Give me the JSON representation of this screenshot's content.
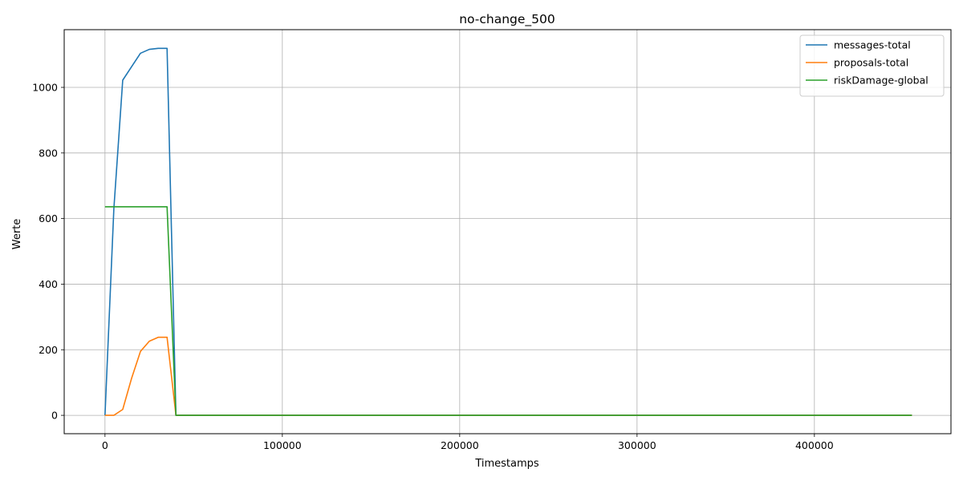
{
  "chart_data": {
    "type": "line",
    "title": "no-change_500",
    "xlabel": "Timestamps",
    "ylabel": "Werte",
    "xlim": [
      -23000,
      477000
    ],
    "ylim": [
      -56,
      1176
    ],
    "x_ticks": [
      0,
      100000,
      200000,
      300000,
      400000
    ],
    "y_ticks": [
      0,
      200,
      400,
      600,
      800,
      1000
    ],
    "grid": true,
    "legend_position": "top-right",
    "series": [
      {
        "name": "messages-total",
        "color": "#1f77b4",
        "x": [
          0,
          5000,
          10000,
          15000,
          20000,
          25000,
          30000,
          35000,
          40000,
          455000
        ],
        "y": [
          0,
          630,
          1022,
          1063,
          1104,
          1116,
          1119,
          1119,
          0,
          0
        ]
      },
      {
        "name": "proposals-total",
        "color": "#ff7f0e",
        "x": [
          0,
          5000,
          10000,
          15000,
          20000,
          25000,
          30000,
          35000,
          40000,
          455000
        ],
        "y": [
          0,
          0,
          18,
          113,
          195,
          226,
          238,
          238,
          0,
          0
        ]
      },
      {
        "name": "riskDamage-global",
        "color": "#2ca02c",
        "x": [
          0,
          5000,
          10000,
          15000,
          20000,
          25000,
          30000,
          35000,
          40000,
          455000
        ],
        "y": [
          636,
          636,
          636,
          636,
          636,
          636,
          636,
          636,
          0,
          0
        ]
      }
    ]
  }
}
